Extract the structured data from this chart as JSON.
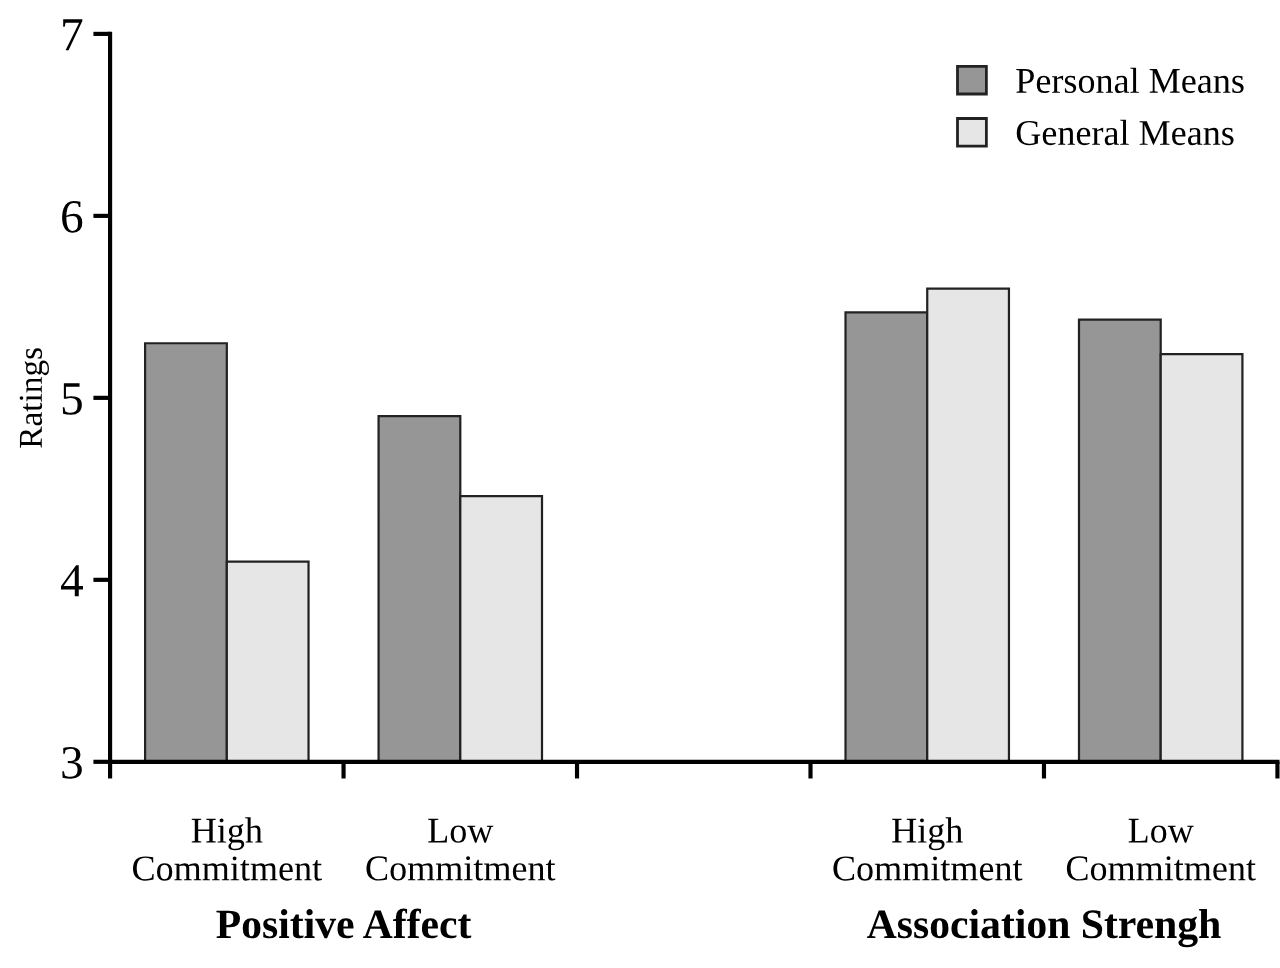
{
  "chart_data": {
    "type": "bar",
    "ylabel": "Ratings",
    "categories": [
      "High\nCommitment",
      "Low\nCommitment",
      null,
      "High\nCommitment",
      "Low\nCommitment"
    ],
    "series": [
      {
        "name": "Personal Means",
        "color": "#969696",
        "values": [
          5.3,
          4.9,
          null,
          5.47,
          5.43
        ]
      },
      {
        "name": "General Means",
        "color": "#e6e6e6",
        "values": [
          4.1,
          4.46,
          null,
          5.6,
          5.24
        ]
      }
    ],
    "ylim": [
      3,
      7
    ],
    "yticks": [
      3,
      4,
      5,
      6,
      7
    ],
    "grid": false,
    "legend": "top right",
    "annotations": [
      "Positive Affect",
      "Association Strengh"
    ]
  }
}
